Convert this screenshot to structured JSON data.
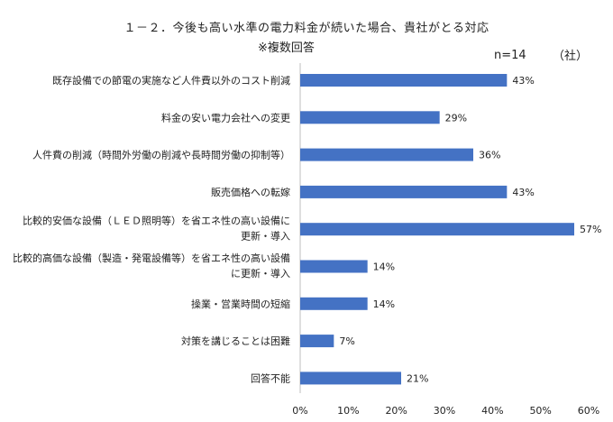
{
  "chart_data": {
    "type": "bar",
    "orientation": "horizontal",
    "title": "１－２．今後も高い水準の電力料金が続いた場合、貴社がとる対応",
    "subtitle": "※複数回答",
    "note": "n=14",
    "unit_note": "（社）",
    "categories": [
      [
        "既存設備での節電の実施など人件費以外のコスト削減"
      ],
      [
        "料金の安い電力会社への変更"
      ],
      [
        "人件費の削減（時間外労働の削減や長時間労働の抑制等）"
      ],
      [
        "販売価格への転嫁"
      ],
      [
        "比較的安価な設備（ＬＥＤ照明等）を省エネ性の高い設備に",
        "更新・導入"
      ],
      [
        "比較的高価な設備（製造・発電設備等）を省エネ性の高い設備",
        "に更新・導入"
      ],
      [
        "操業・営業時間の短縮"
      ],
      [
        "対策を講じることは困難"
      ],
      [
        "回答不能"
      ]
    ],
    "values": [
      43,
      29,
      36,
      43,
      57,
      14,
      14,
      7,
      21
    ],
    "value_labels": [
      "43%",
      "29%",
      "36%",
      "43%",
      "57%",
      "14%",
      "14%",
      "7%",
      "21%"
    ],
    "xlim": [
      0,
      60
    ],
    "xticks": [
      "0%",
      "10%",
      "20%",
      "30%",
      "40%",
      "50%",
      "60%"
    ],
    "bar_color": "#4472C4",
    "grid": false,
    "legend": "none"
  }
}
